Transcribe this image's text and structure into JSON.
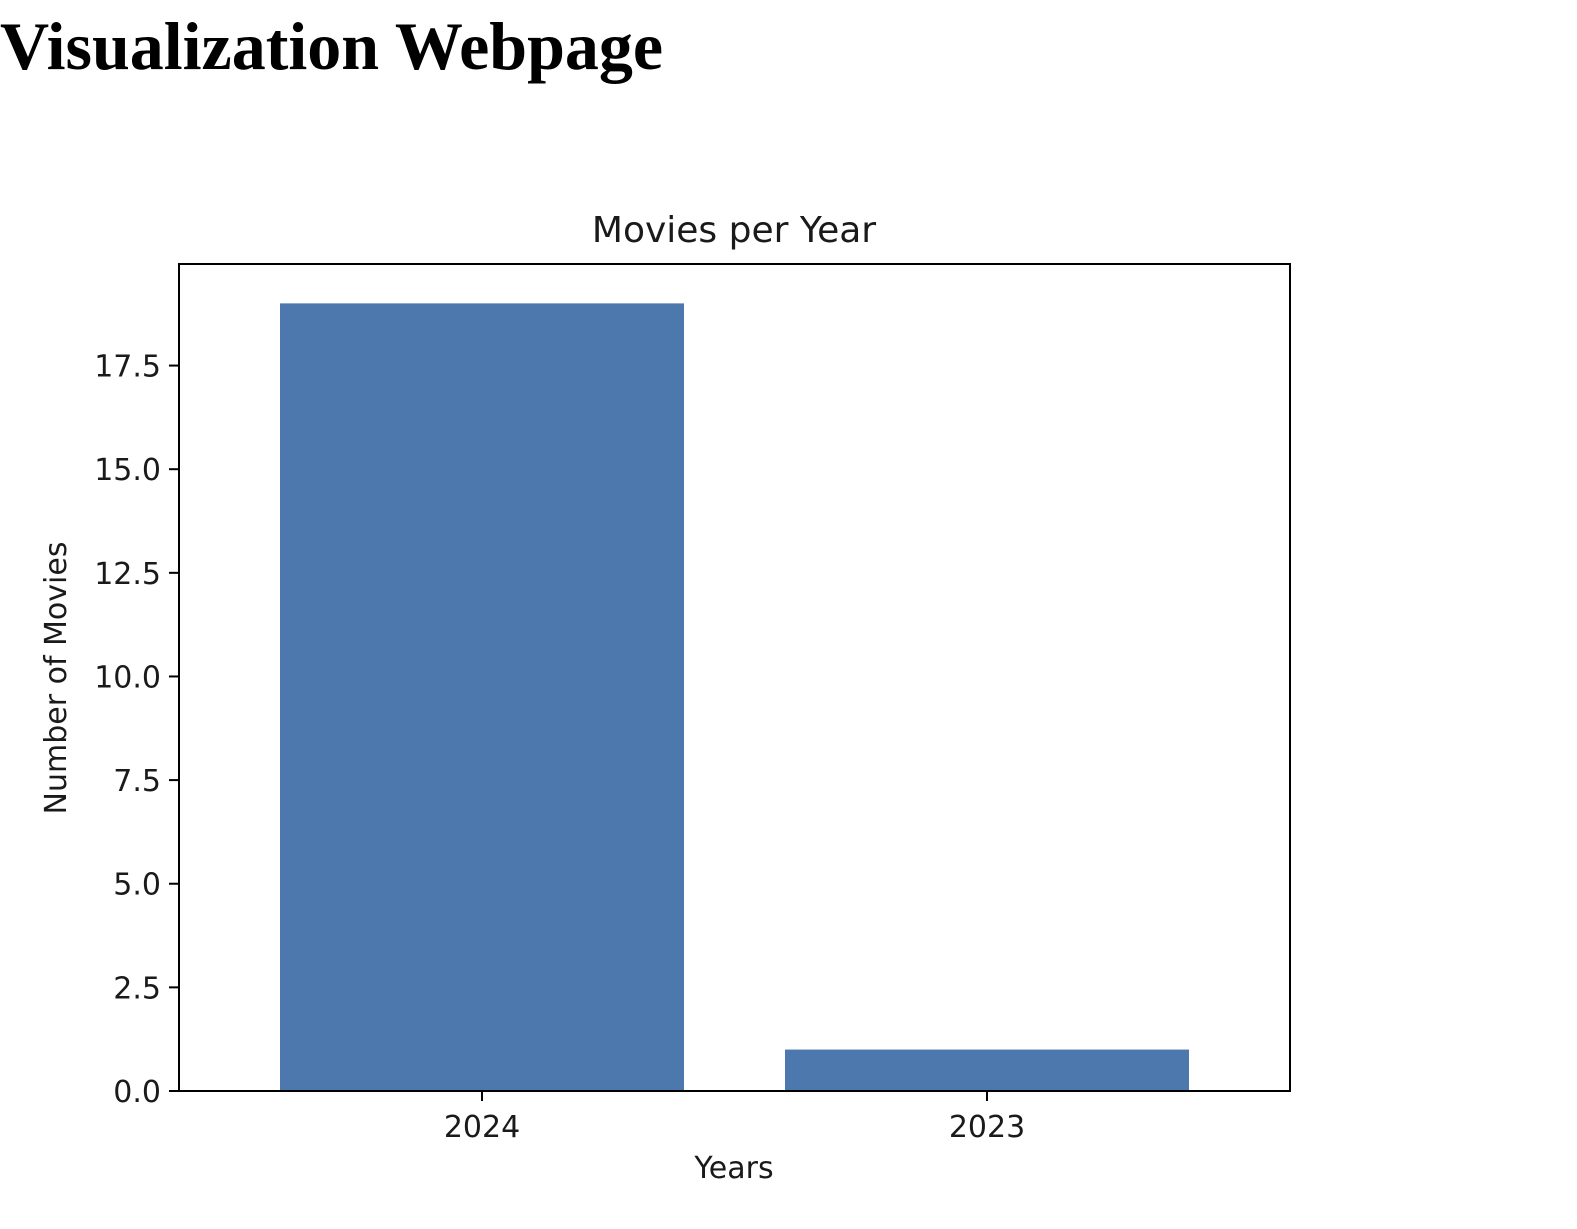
{
  "page": {
    "heading": "Visualization Webpage"
  },
  "chart_data": {
    "type": "bar",
    "title": "Movies per Year",
    "xlabel": "Years",
    "ylabel": "Number of Movies",
    "categories": [
      "2024",
      "2023"
    ],
    "values": [
      19,
      1
    ],
    "ylim": [
      0,
      19.95
    ],
    "yticks": [
      0.0,
      2.5,
      5.0,
      7.5,
      10.0,
      12.5,
      15.0,
      17.5
    ],
    "ytick_labels": [
      "0.0",
      "2.5",
      "5.0",
      "7.5",
      "10.0",
      "12.5",
      "15.0",
      "17.5"
    ],
    "grid": false,
    "colors": {
      "bar": "#4c78ae",
      "axes": "#000000",
      "text": "#1a1a1a"
    }
  }
}
